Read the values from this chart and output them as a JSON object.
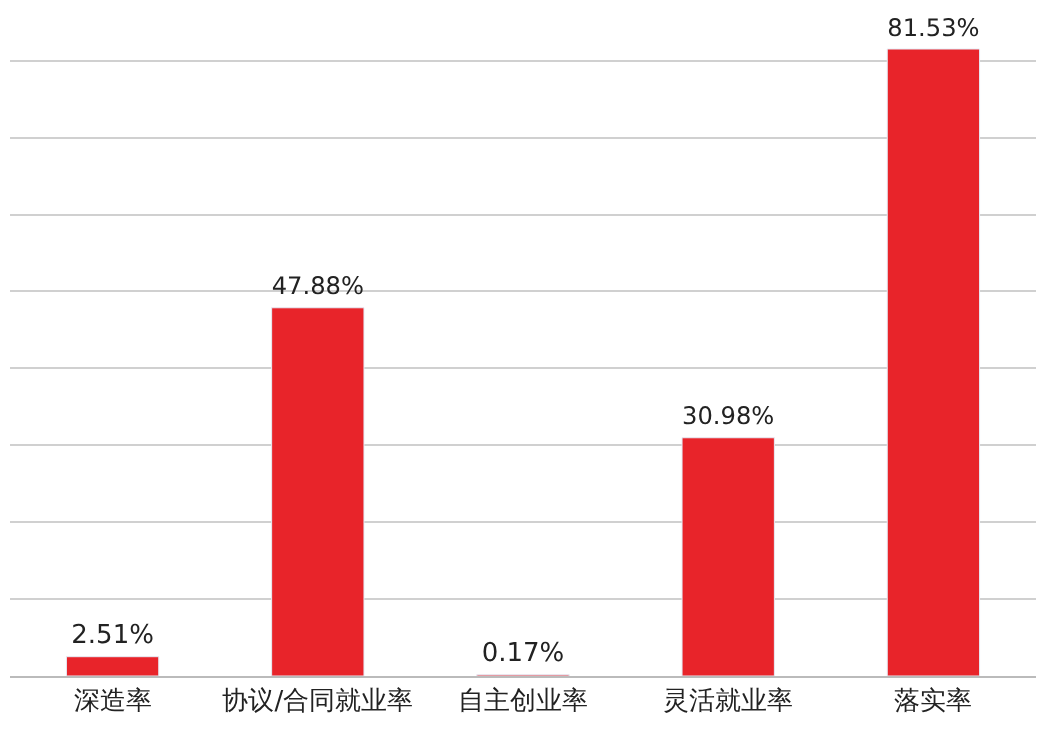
{
  "chart_data": {
    "type": "bar",
    "categories": [
      "深造率",
      "协议/合同就业率",
      "自主创业率",
      "灵活就业率",
      "落实率"
    ],
    "values": [
      2.51,
      47.88,
      0.17,
      30.98,
      81.53
    ],
    "value_labels": [
      "2.51%",
      "47.88%",
      "0.17%",
      "30.98%",
      "81.53%"
    ],
    "color": "#e8242a",
    "grid": "y",
    "tick_labels": "x"
  }
}
